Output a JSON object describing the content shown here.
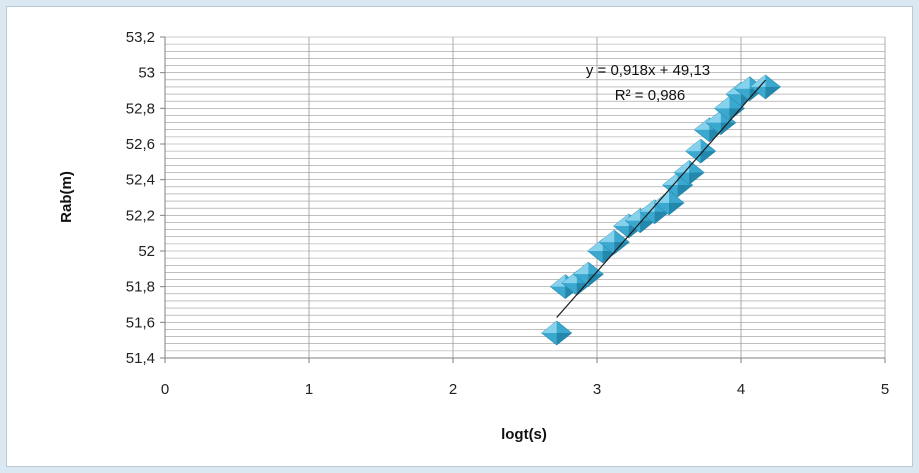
{
  "chart_data": {
    "type": "scatter",
    "title": "",
    "xlabel": "logt(s)",
    "ylabel": "Rab(m)",
    "xlim": [
      0,
      5
    ],
    "ylim": [
      51.4,
      53.2
    ],
    "x_ticks": [
      "0",
      "1",
      "2",
      "3",
      "4",
      "5"
    ],
    "y_ticks": [
      "51,4",
      "51,6",
      "51,8",
      "52",
      "52,2",
      "52,4",
      "52,6",
      "52,8",
      "53",
      "53,2"
    ],
    "minor_y_step": 0.04,
    "grid": true,
    "series": [
      {
        "marker": "diamond",
        "color": "#3aa8cf",
        "x": [
          2.72,
          2.78,
          2.86,
          2.94,
          3.04,
          3.12,
          3.22,
          3.3,
          3.4,
          3.5,
          3.56,
          3.64,
          3.72,
          3.78,
          3.86,
          3.92,
          4.0,
          4.06,
          4.17
        ],
        "y": [
          51.54,
          51.8,
          51.82,
          51.87,
          52.0,
          52.05,
          52.14,
          52.17,
          52.22,
          52.27,
          52.37,
          52.44,
          52.56,
          52.68,
          52.72,
          52.8,
          52.88,
          52.91,
          52.92
        ]
      }
    ],
    "trendline": {
      "slope": 0.918,
      "intercept": 49.13,
      "x_range": [
        2.72,
        4.17
      ],
      "color": "#1a1a1a",
      "equation_label": "y = 0,918x + 49,13",
      "r2_label": "R² = 0,986"
    },
    "colors": {
      "grid": "#9a9a9a",
      "axis": "#808080",
      "marker_fill": "#3aa8cf",
      "marker_light": "#8fd6ef",
      "marker_dark": "#1f7ea3"
    }
  }
}
